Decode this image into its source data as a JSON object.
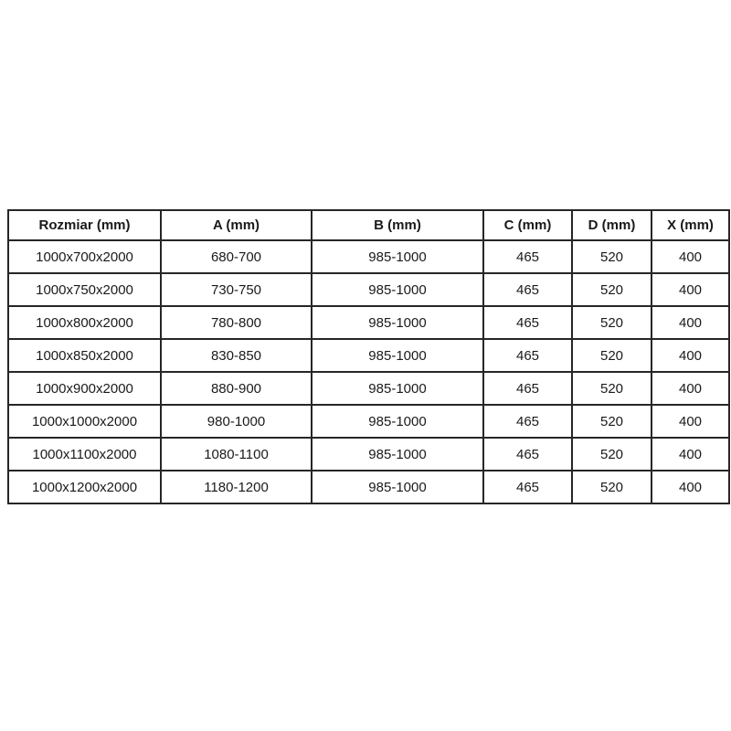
{
  "colors": {
    "page-bg": "#ffffff",
    "table-bg": "#ffffff",
    "border": "#262626",
    "text": "#1a1a1a"
  },
  "chart_data": {
    "type": "table",
    "title": "",
    "columns": [
      "Rozmiar (mm)",
      "A (mm)",
      "B (mm)",
      "C (mm)",
      "D (mm)",
      "X (mm)"
    ],
    "rows": [
      [
        "1000x700x2000",
        "680-700",
        "985-1000",
        "465",
        "520",
        "400"
      ],
      [
        "1000x750x2000",
        "730-750",
        "985-1000",
        "465",
        "520",
        "400"
      ],
      [
        "1000x800x2000",
        "780-800",
        "985-1000",
        "465",
        "520",
        "400"
      ],
      [
        "1000x850x2000",
        "830-850",
        "985-1000",
        "465",
        "520",
        "400"
      ],
      [
        "1000x900x2000",
        "880-900",
        "985-1000",
        "465",
        "520",
        "400"
      ],
      [
        "1000x1000x2000",
        "980-1000",
        "985-1000",
        "465",
        "520",
        "400"
      ],
      [
        "1000x1100x2000",
        "1080-1100",
        "985-1000",
        "465",
        "520",
        "400"
      ],
      [
        "1000x1200x2000",
        "1180-1200",
        "985-1000",
        "465",
        "520",
        "400"
      ]
    ],
    "layout": {
      "grid": true,
      "header_row": true,
      "text_align": "center"
    }
  }
}
